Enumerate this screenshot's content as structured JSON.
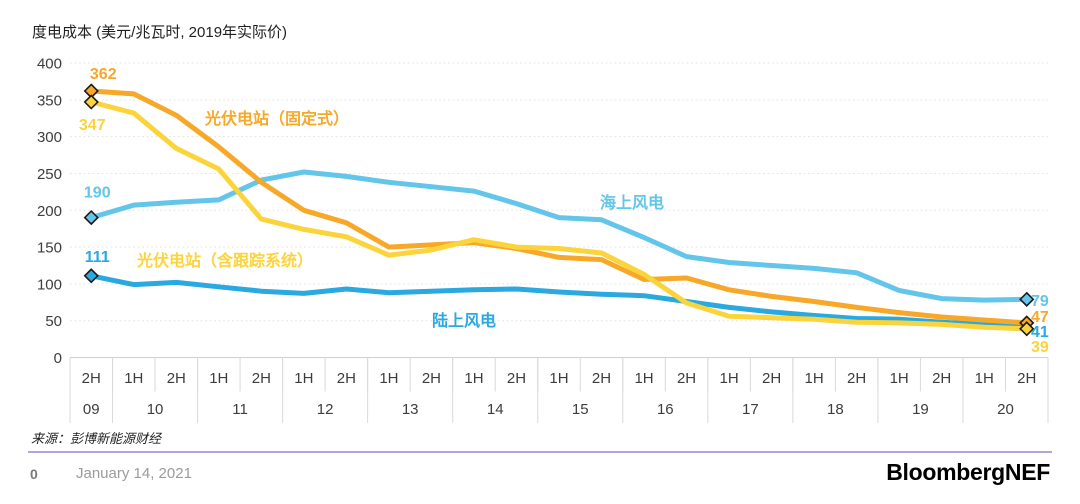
{
  "title": "度电成本 (美元/兆瓦时, 2019年实际价)",
  "source_note": "来源：彭博新能源财经",
  "footer": {
    "page_number": "0",
    "date": "January 14, 2021",
    "logo_text": "BloombergNEF"
  },
  "chart_data": {
    "type": "line",
    "title": "度电成本 (美元/兆瓦时, 2019年实际价)",
    "ylabel": "美元/兆瓦时, 2019年实际价",
    "ylim": [
      0,
      400
    ],
    "ytick_step": 50,
    "grid": true,
    "legend_position": "inline-labels",
    "x_periods": [
      "2H",
      "1H",
      "2H",
      "1H",
      "2H",
      "1H",
      "2H",
      "1H",
      "2H",
      "1H",
      "2H",
      "1H",
      "2H",
      "1H",
      "2H",
      "1H",
      "2H",
      "1H",
      "2H",
      "1H",
      "2H",
      "1H",
      "2H"
    ],
    "x_years": [
      {
        "label": "09",
        "span": 1
      },
      {
        "label": "10",
        "span": 2
      },
      {
        "label": "11",
        "span": 2
      },
      {
        "label": "12",
        "span": 2
      },
      {
        "label": "13",
        "span": 2
      },
      {
        "label": "14",
        "span": 2
      },
      {
        "label": "15",
        "span": 2
      },
      {
        "label": "16",
        "span": 2
      },
      {
        "label": "17",
        "span": 2
      },
      {
        "label": "18",
        "span": 2
      },
      {
        "label": "19",
        "span": 2
      },
      {
        "label": "20",
        "span": 2
      }
    ],
    "series": [
      {
        "key": "pv-fixed",
        "name": "光伏电站（固定式）",
        "color": "#F7A829",
        "start_label": "362",
        "end_label": "47",
        "values": [
          362,
          358,
          329,
          286,
          238,
          200,
          183,
          150,
          153,
          156,
          148,
          136,
          133,
          106,
          108,
          92,
          83,
          76,
          68,
          61,
          55,
          51,
          47
        ]
      },
      {
        "key": "pv-tracking",
        "name": "光伏电站（含跟踪系统）",
        "color": "#FBD43C",
        "start_label": "347",
        "end_label": "39",
        "values": [
          347,
          332,
          284,
          256,
          188,
          174,
          164,
          139,
          146,
          160,
          150,
          148,
          142,
          113,
          74,
          56,
          54,
          52,
          48,
          47,
          45,
          41,
          39
        ]
      },
      {
        "key": "offshore-wind",
        "name": "海上风电",
        "color": "#63C5E9",
        "start_label": "190",
        "end_label": "79",
        "values": [
          190,
          207,
          211,
          214,
          241,
          252,
          246,
          238,
          232,
          226,
          209,
          190,
          187,
          163,
          137,
          129,
          125,
          121,
          115,
          91,
          80,
          78,
          79
        ]
      },
      {
        "key": "onshore-wind",
        "name": "陆上风电",
        "color": "#2AA9E1",
        "start_label": "111",
        "end_label": "41",
        "values": [
          111,
          99,
          102,
          96,
          90,
          87,
          93,
          88,
          90,
          92,
          93,
          89,
          86,
          84,
          76,
          68,
          62,
          57,
          53,
          52,
          48,
          45,
          41
        ]
      }
    ]
  }
}
